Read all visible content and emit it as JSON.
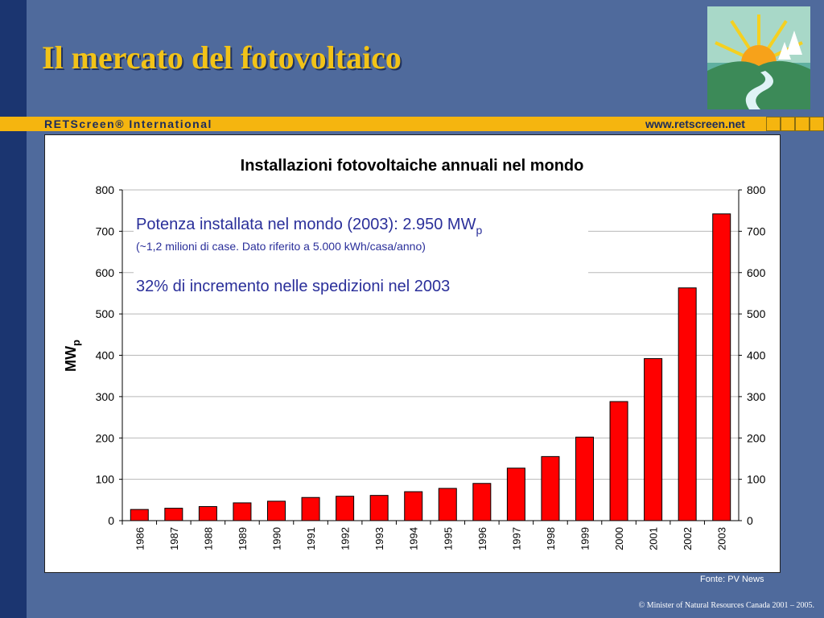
{
  "slide": {
    "title": "Il mercato del fotovoltaico",
    "banner_brand": "RETScreen® International",
    "banner_url": "www.retscreen.net",
    "source": "Fonte:  PV News",
    "copyright": "© Minister of Natural Resources Canada 2001 – 2005."
  },
  "note": {
    "line1": "Potenza installata nel mondo (2003):  2.950 MW",
    "line1_sub": "p",
    "line2": "(~1,2 milioni di case. Dato riferito a 5.000 kWh/casa/anno)",
    "line3": "32% di incremento nelle spedizioni nel 2003"
  },
  "colors": {
    "background": "#4f6a9c",
    "title": "#f2c318",
    "banner": "#f5b50f",
    "bar": "#ff0000",
    "note_text": "#2a2f9a"
  },
  "chart_data": {
    "type": "bar",
    "title": "Installazioni fotovoltaiche annuali nel mondo",
    "ylabel": "MW",
    "ylabel_sub": "p",
    "xlabel": "",
    "categories": [
      "1986",
      "1987",
      "1988",
      "1989",
      "1990",
      "1991",
      "1992",
      "1993",
      "1994",
      "1995",
      "1996",
      "1997",
      "1998",
      "1999",
      "2000",
      "2001",
      "2002",
      "2003"
    ],
    "values": [
      27,
      30,
      34,
      43,
      47,
      56,
      59,
      61,
      70,
      78,
      90,
      127,
      155,
      202,
      288,
      392,
      563,
      742
    ],
    "ylim": [
      0,
      800
    ],
    "yticks": [
      0,
      100,
      200,
      300,
      400,
      500,
      600,
      700,
      800
    ],
    "grid": true,
    "right_axis": true
  }
}
